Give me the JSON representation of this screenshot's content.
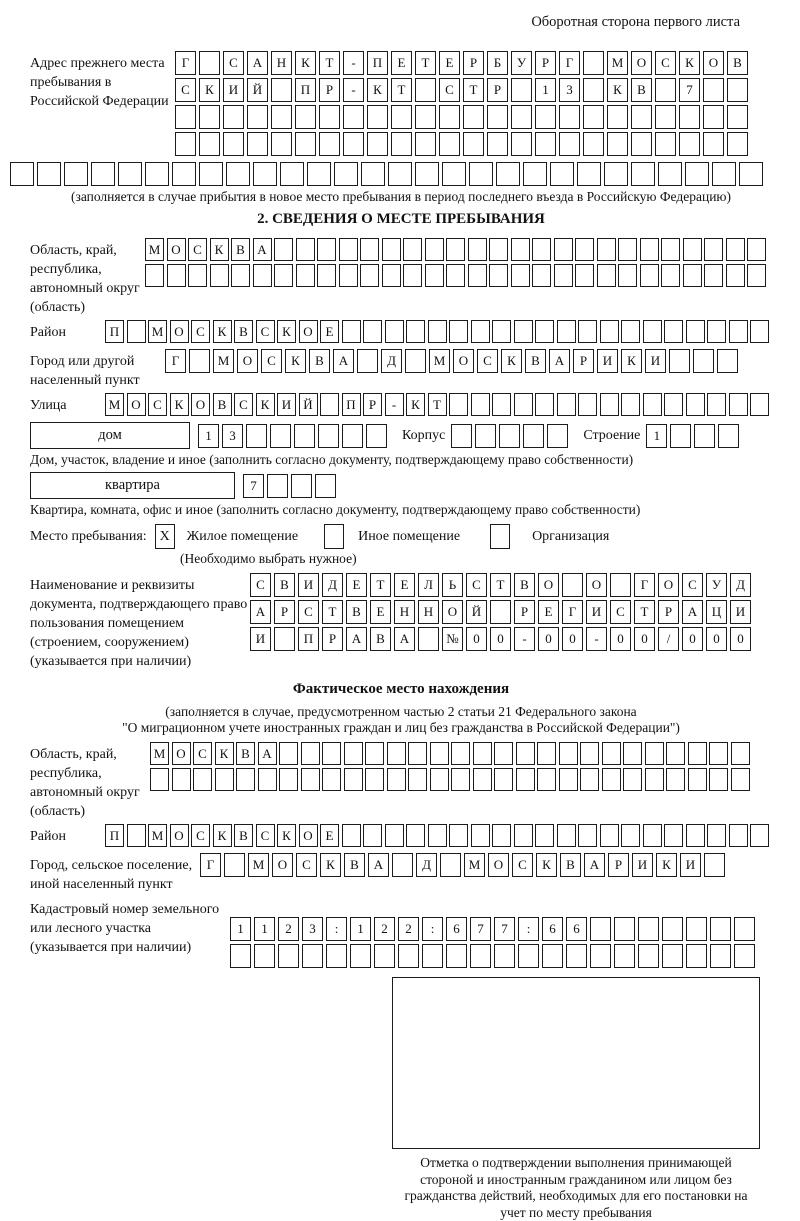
{
  "header": {
    "note": "Оборотная сторона первого листа"
  },
  "prev_address": {
    "label": "Адрес прежнего места пребывания в Российской Федерации",
    "rows": [
      "Г САНКТ-ПЕТЕРБУРГ МОСКОВ",
      "СКИЙ ПР-КТ СТР 13 КВ 7  ",
      "                        ",
      "                        "
    ],
    "full_row": "                            ",
    "note": "(заполняется в случае прибытия в новое место пребывания в период последнего въезда в Российскую Федерацию)"
  },
  "section2": {
    "title": "2. СВЕДЕНИЯ О МЕСТЕ ПРЕБЫВАНИЯ",
    "region": {
      "label": "Область, край, республика, автономный округ (область)",
      "rows": [
        "МОСКВА                       ",
        "                             "
      ]
    },
    "district": {
      "label": "Район",
      "row": "П МОСКВСКОЕ                    "
    },
    "city": {
      "label": "Город или другой населенный пункт",
      "row": "Г МОСКВА Д МОСКВАРИКИ   "
    },
    "street": {
      "label": "Улица",
      "row": "МОСКОВСКИЙ ПР-КТ               "
    },
    "house": {
      "box_label": "дом",
      "cells": "13      ",
      "korpus_label": "Корпус",
      "korpus_cells": "     ",
      "stroenie_label": "Строение",
      "stroenie_cells": "1   ",
      "note": "Дом, участок, владение и иное (заполнить согласно документу, подтверждающему право собственности)"
    },
    "apartment": {
      "box_label": "квартира",
      "cells": "7   ",
      "note": "Квартира, комната, офис и иное (заполнить согласно документу, подтверждающему право собственности)"
    },
    "place_type": {
      "label": "Место пребывания:",
      "checked_mark": "Х",
      "options": [
        "Жилое помещение",
        "Иное помещение",
        "Организация"
      ],
      "note": "(Необходимо выбрать нужное)"
    },
    "document": {
      "label": "Наименование и реквизиты документа, подтверждающего право пользования помещением (строением, сооружением) (указывается при наличии)",
      "rows": [
        "СВИДЕТЕЛЬСТВО О ГОСУД",
        "АРСТВЕННОЙ РЕГИСТРАЦИ",
        "И ПРАВА №00-00-00/000"
      ]
    }
  },
  "actual_location": {
    "title": "Фактическое место нахождения",
    "note_line1": "(заполняется в случае, предусмотренном частью 2 статьи 21 Федерального закона",
    "note_line2": "\"О миграционном учете иностранных граждан и лиц без гражданства в Российской Федерации\")",
    "region": {
      "label": "Область, край, республика, автономный округ (область)",
      "rows": [
        "МОСКВА                      ",
        "                            "
      ]
    },
    "district": {
      "label": "Район",
      "row": "П МОСКВСКОЕ                    "
    },
    "city": {
      "label": "Город, сельское поселение, иной населенный пункт",
      "row": "Г МОСКВА Д МОСКВАРИКИ "
    },
    "cadastral": {
      "label": "Кадастровый номер земельного или лесного участка (указывается при наличии)",
      "rows": [
        "1123:122:677:66       ",
        "                      "
      ]
    },
    "stamp_note": "Отметка о подтверждении выполнения принимающей стороной и иностранным гражданином или лицом без гражданства действий, необходимых для его постановки на учет по месту пребывания"
  }
}
